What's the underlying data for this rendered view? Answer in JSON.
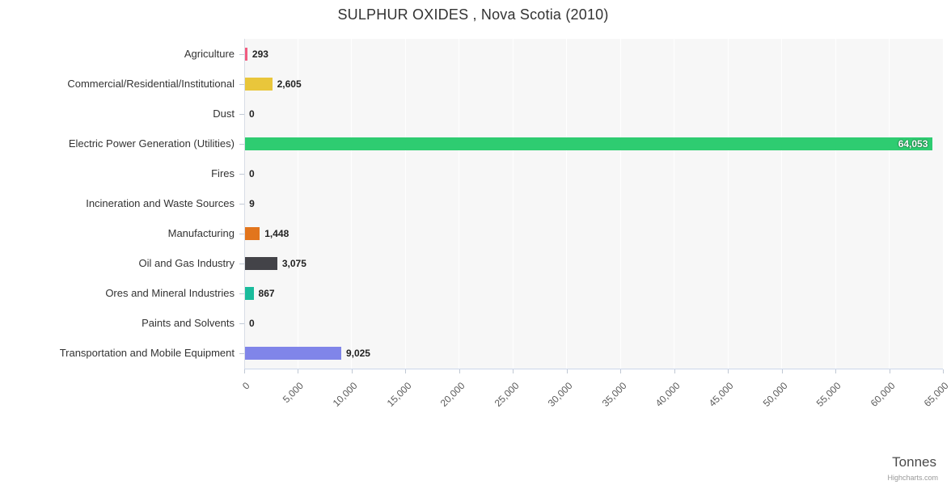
{
  "chart_data": {
    "type": "bar",
    "orientation": "horizontal",
    "title": "SULPHUR OXIDES , Nova Scotia (2010)",
    "xlabel": "Tonnes",
    "ylabel": "",
    "xlim": [
      0,
      65000
    ],
    "tick_interval": 5000,
    "tick_values": [
      0,
      5000,
      10000,
      15000,
      20000,
      25000,
      30000,
      35000,
      40000,
      45000,
      50000,
      55000,
      60000,
      65000
    ],
    "tick_labels": [
      "0",
      "5,000",
      "10,000",
      "15,000",
      "20,000",
      "25,000",
      "30,000",
      "35,000",
      "40,000",
      "45,000",
      "50,000",
      "55,000",
      "60,000",
      "65,000"
    ],
    "categories": [
      "Agriculture",
      "Commercial/Residential/Institutional",
      "Dust",
      "Electric Power Generation (Utilities)",
      "Fires",
      "Incineration and Waste Sources",
      "Manufacturing",
      "Oil and Gas Industry",
      "Ores and Mineral Industries",
      "Paints and Solvents",
      "Transportation and Mobile Equipment"
    ],
    "values": [
      293,
      2605,
      0,
      64053,
      0,
      9,
      1448,
      3075,
      867,
      0,
      9025
    ],
    "value_labels": [
      "293",
      "2,605",
      "0",
      "64,053",
      "0",
      "9",
      "1,448",
      "3,075",
      "867",
      "0",
      "9,025"
    ],
    "colors": [
      "#f15c80",
      "#e9c63b",
      "#cccccc",
      "#2ecc71",
      "#cccccc",
      "#cccccc",
      "#e2751d",
      "#434348",
      "#1abc9c",
      "#cccccc",
      "#8085e9"
    ],
    "label_inside": [
      false,
      false,
      false,
      true,
      false,
      false,
      false,
      false,
      false,
      false,
      false
    ],
    "grid": true,
    "legend": false,
    "plot_background": "#f7f7f7",
    "gridline_color": "#ffffff",
    "credit": "Highcharts.com"
  }
}
